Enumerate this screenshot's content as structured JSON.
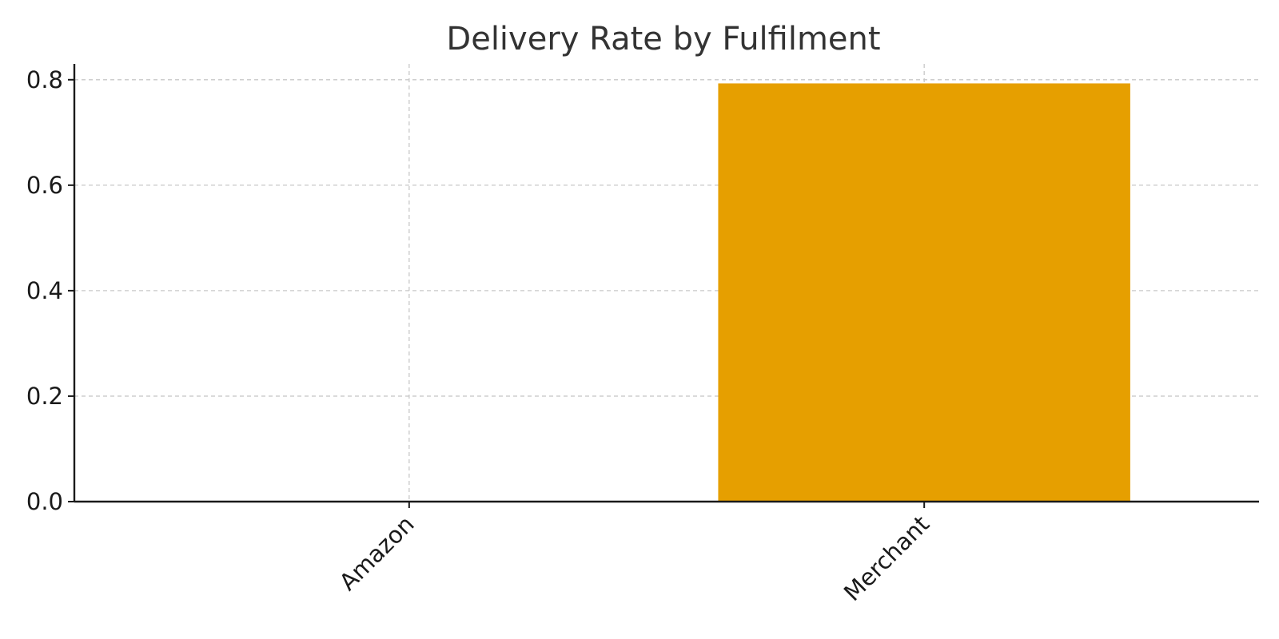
{
  "chart_data": {
    "type": "bar",
    "title": "Delivery Rate by Fulfilment",
    "xlabel": "",
    "ylabel": "",
    "categories": [
      "Amazon",
      "Merchant"
    ],
    "values": [
      0.0,
      0.793
    ],
    "ylim": [
      0,
      0.83
    ],
    "yticks": [
      0.0,
      0.2,
      0.4,
      0.6,
      0.8
    ],
    "ytick_labels": [
      "0.0",
      "0.2",
      "0.4",
      "0.6",
      "0.8"
    ],
    "grid": true,
    "bar_color": "#E69F00",
    "legend": "none"
  }
}
